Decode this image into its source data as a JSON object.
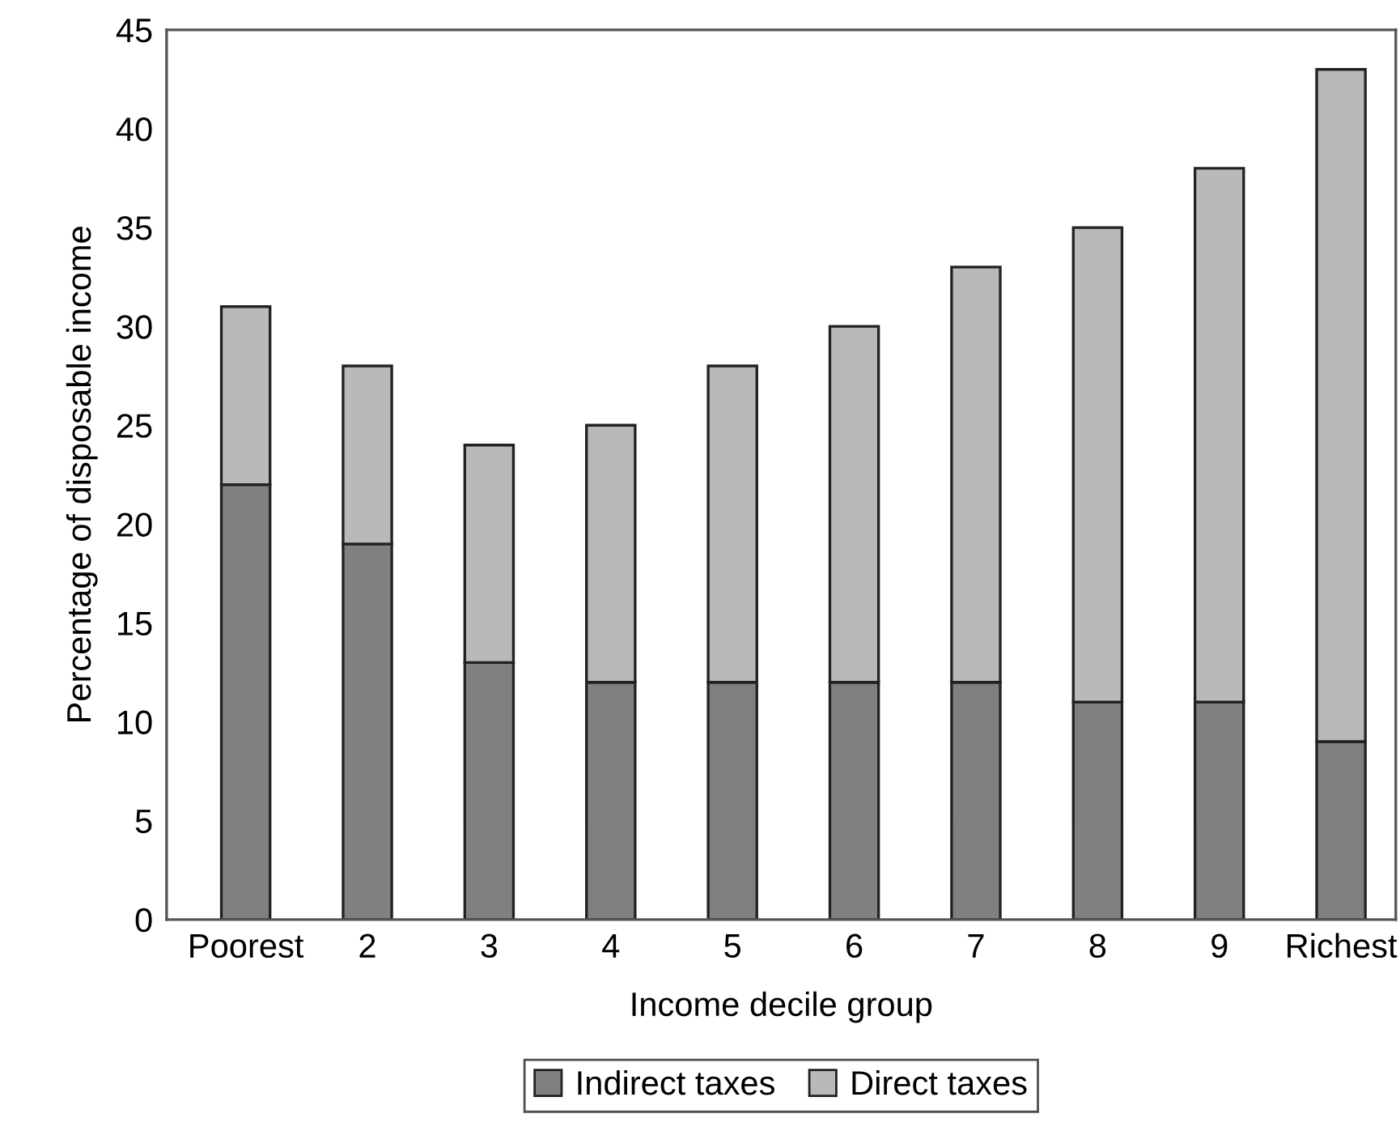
{
  "chart_data": {
    "type": "bar",
    "stacked": true,
    "xlabel": "Income decile group",
    "ylabel": "Percentage of disposable income",
    "categories": [
      "Poorest",
      "2",
      "3",
      "4",
      "5",
      "6",
      "7",
      "8",
      "9",
      "Richest"
    ],
    "series": [
      {
        "name": "Indirect taxes",
        "color": "#808080",
        "values": [
          22,
          19,
          13,
          12,
          12,
          12,
          12,
          11,
          11,
          9
        ]
      },
      {
        "name": "Direct taxes",
        "color": "#b9b9b9",
        "values": [
          9,
          9,
          11,
          13,
          16,
          18,
          21,
          24,
          27,
          34
        ]
      }
    ],
    "ylim": [
      0,
      45
    ],
    "yticks": [
      0,
      5,
      10,
      15,
      20,
      25,
      30,
      35,
      40,
      45
    ],
    "grid": false,
    "legend": "bottom"
  }
}
